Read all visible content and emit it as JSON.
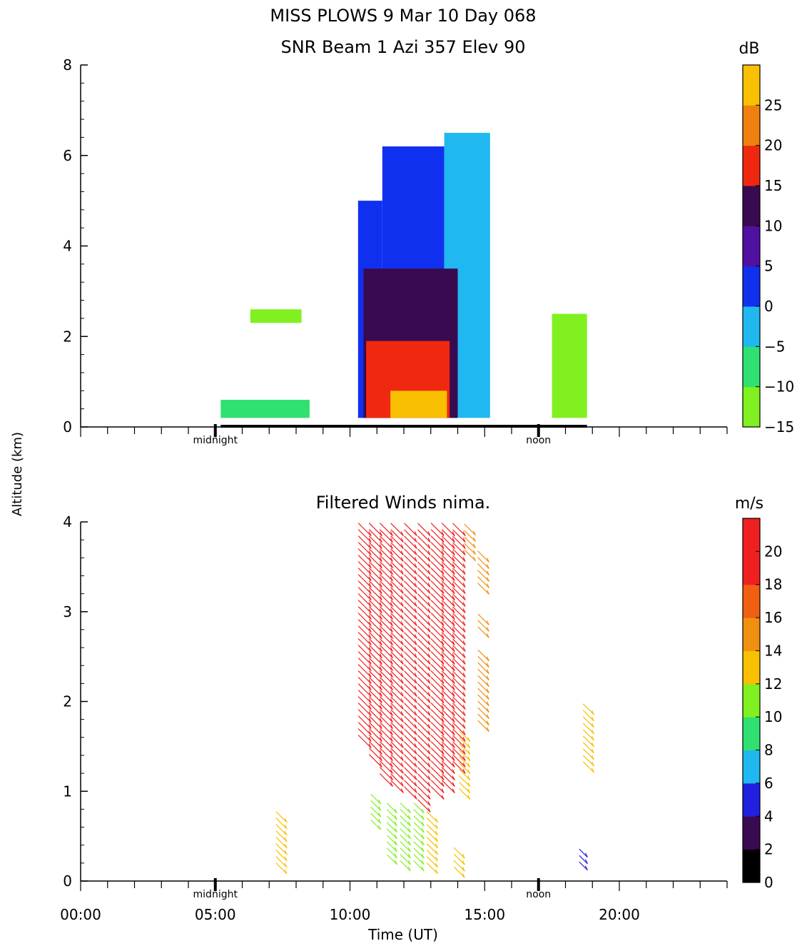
{
  "header": {
    "title": "MISS PLOWS   9 Mar 10 Day 068",
    "subtitle": "SNR Beam 1 Azi 357 Elev 90"
  },
  "shared": {
    "ylabel": "Altitude (km)",
    "xlabel": "Time (UT)",
    "xlim": [
      0,
      24
    ],
    "x_tick_labels": [
      "00:00",
      "05:00",
      "10:00",
      "15:00",
      "20:00"
    ],
    "x_tick_values": [
      0,
      5,
      10,
      15,
      20
    ],
    "local_markers": [
      {
        "label": "midnight",
        "time": 5.0
      },
      {
        "label": "noon",
        "time": 17.0
      }
    ]
  },
  "chart_data": [
    {
      "type": "heatmap",
      "title": "SNR Beam 1 Azi 357 Elev 90",
      "xlabel": "Time (UT)",
      "ylabel": "Altitude (km)",
      "xlim": [
        0,
        24
      ],
      "ylim": [
        0,
        8
      ],
      "y_tick_labels": [
        "0",
        "2",
        "4",
        "6",
        "8"
      ],
      "colorbar": {
        "unit": "dB",
        "tick_labels": [
          "25",
          "20",
          "15",
          "10",
          "5",
          "0",
          "−5",
          "−10",
          "−15"
        ],
        "tick_values": [
          25,
          20,
          15,
          10,
          5,
          0,
          -5,
          -10,
          -15
        ],
        "range": [
          -15,
          30
        ],
        "colors": [
          "#80f020",
          "#30e070",
          "#20b8f0",
          "#1030f0",
          "#5010a0",
          "#3a0a50",
          "#f02810",
          "#f08010",
          "#f8c000"
        ]
      },
      "data_coverage": {
        "time_start": 5.2,
        "time_end": 18.8
      },
      "regions": [
        {
          "t0": 10.3,
          "t1": 11.2,
          "z0": 0.2,
          "z1": 5.0,
          "level": 0
        },
        {
          "t0": 11.2,
          "t1": 13.5,
          "z0": 0.2,
          "z1": 6.2,
          "level": 0
        },
        {
          "t0": 13.5,
          "t1": 15.2,
          "z0": 0.2,
          "z1": 6.5,
          "level": -5
        },
        {
          "t0": 10.5,
          "t1": 14.0,
          "z0": 0.2,
          "z1": 3.5,
          "level": 10
        },
        {
          "t0": 10.6,
          "t1": 13.7,
          "z0": 0.2,
          "z1": 1.9,
          "level": 15
        },
        {
          "t0": 11.5,
          "t1": 13.6,
          "z0": 0.2,
          "z1": 0.8,
          "level": 25
        },
        {
          "t0": 5.2,
          "t1": 8.5,
          "z0": 0.2,
          "z1": 0.6,
          "level": -10
        },
        {
          "t0": 6.3,
          "t1": 8.2,
          "z0": 2.3,
          "z1": 2.6,
          "level": -15
        },
        {
          "t0": 17.5,
          "t1": 18.8,
          "z0": 0.2,
          "z1": 2.5,
          "level": -15
        }
      ]
    },
    {
      "type": "scatter",
      "title": "Filtered Winds nima.",
      "xlabel": "Time (UT)",
      "ylabel": "Altitude (km)",
      "xlim": [
        0,
        24
      ],
      "ylim": [
        0,
        4
      ],
      "y_tick_labels": [
        "0",
        "1",
        "2",
        "3",
        "4"
      ],
      "colorbar": {
        "unit": "m/s",
        "tick_labels": [
          "20",
          "18",
          "16",
          "14",
          "12",
          "10",
          "8",
          "6",
          "4",
          "2",
          "0"
        ],
        "tick_values": [
          20,
          18,
          16,
          14,
          12,
          10,
          8,
          6,
          4,
          2,
          0
        ],
        "range": [
          0,
          22
        ],
        "colors": [
          "#000000",
          "#3a0a50",
          "#2020e0",
          "#20b8f0",
          "#30e070",
          "#80f020",
          "#f8c000",
          "#f09010",
          "#f06010",
          "#f02020",
          "#f02020"
        ]
      },
      "profiles": [
        {
          "time": 7.5,
          "z0": 0.1,
          "z1": 0.7,
          "speed": 13
        },
        {
          "time": 10.6,
          "z0": 1.5,
          "z1": 3.9,
          "speed": 20
        },
        {
          "time": 11.0,
          "z0": 1.3,
          "z1": 3.9,
          "speed": 20
        },
        {
          "time": 11.4,
          "z0": 1.1,
          "z1": 3.9,
          "speed": 20
        },
        {
          "time": 11.8,
          "z0": 1.0,
          "z1": 3.9,
          "speed": 19
        },
        {
          "time": 12.3,
          "z0": 0.9,
          "z1": 3.9,
          "speed": 19
        },
        {
          "time": 12.8,
          "z0": 0.8,
          "z1": 3.9,
          "speed": 19
        },
        {
          "time": 13.3,
          "z0": 0.9,
          "z1": 3.9,
          "speed": 20
        },
        {
          "time": 13.7,
          "z0": 1.0,
          "z1": 3.9,
          "speed": 20
        },
        {
          "time": 14.1,
          "z0": 1.2,
          "z1": 3.9,
          "speed": 19
        },
        {
          "time": 14.5,
          "z0": 3.6,
          "z1": 3.9,
          "speed": 14
        },
        {
          "time": 15.0,
          "z0": 3.2,
          "z1": 3.6,
          "speed": 15
        },
        {
          "time": 15.0,
          "z0": 2.7,
          "z1": 2.9,
          "speed": 14
        },
        {
          "time": 15.0,
          "z0": 1.7,
          "z1": 2.5,
          "speed": 14
        },
        {
          "time": 14.3,
          "z0": 0.9,
          "z1": 1.6,
          "speed": 13
        },
        {
          "time": 11.0,
          "z0": 0.6,
          "z1": 0.9,
          "speed": 10
        },
        {
          "time": 11.6,
          "z0": 0.2,
          "z1": 0.8,
          "speed": 10
        },
        {
          "time": 12.1,
          "z0": 0.1,
          "z1": 0.8,
          "speed": 11
        },
        {
          "time": 12.6,
          "z0": 0.1,
          "z1": 0.8,
          "speed": 11
        },
        {
          "time": 13.1,
          "z0": 0.1,
          "z1": 0.7,
          "speed": 13
        },
        {
          "time": 14.1,
          "z0": 0.05,
          "z1": 0.3,
          "speed": 13
        },
        {
          "time": 18.9,
          "z0": 1.2,
          "z1": 1.9,
          "speed": 13
        },
        {
          "time": 18.7,
          "z0": 0.15,
          "z1": 0.3,
          "speed": 4
        }
      ]
    }
  ]
}
